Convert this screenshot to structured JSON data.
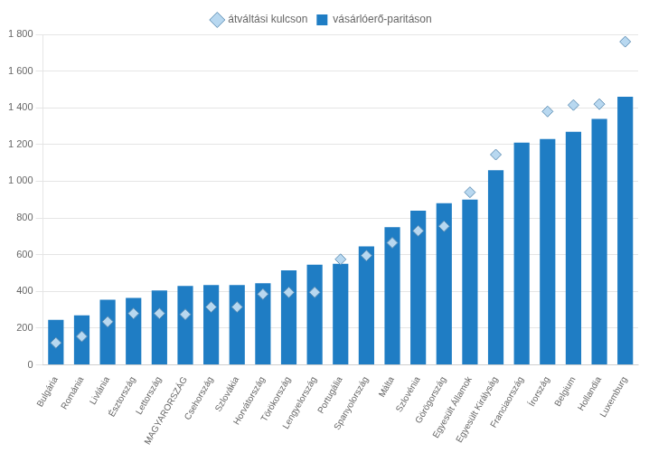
{
  "chart_data": {
    "type": "bar",
    "categories": [
      "Bulgária",
      "Románia",
      "Livlánia",
      "Észtország",
      "Lettország",
      "MAGYARORSZÁG",
      "Csehország",
      "Szlovákia",
      "Horvátország",
      "Törökország",
      "Lengyelország",
      "Portugália",
      "Spanyolország",
      "Málta",
      "Szlovénia",
      "Görögország",
      "Egyesült Államok",
      "Egyesült Királyság",
      "Franciaország",
      "Írország",
      "Belgium",
      "Hollandia",
      "Luxemburg"
    ],
    "series": [
      {
        "name": "vásárlóerő-paritáson",
        "type": "bar",
        "color": "#1F7DC4",
        "values": [
          245,
          270,
          355,
          365,
          405,
          430,
          435,
          435,
          445,
          515,
          545,
          550,
          645,
          750,
          840,
          880,
          900,
          1060,
          1210,
          1230,
          1270,
          1340,
          1460
        ]
      },
      {
        "name": "átváltási kulcson",
        "type": "scatter",
        "marker": "diamond",
        "color": "#B8D8F0",
        "values": [
          120,
          155,
          235,
          280,
          280,
          275,
          315,
          315,
          385,
          395,
          395,
          575,
          595,
          665,
          730,
          755,
          940,
          1145,
          null,
          1380,
          1415,
          1420,
          1760
        ]
      }
    ],
    "ylim": [
      0,
      1800
    ],
    "yticks": [
      0,
      200,
      400,
      600,
      800,
      {
        "value": 1000,
        "label": "1 000"
      },
      {
        "value": 1200,
        "label": "1 200"
      },
      {
        "value": 1400,
        "label": "1 400"
      },
      {
        "value": 1600,
        "label": "1 600"
      },
      {
        "value": 1800,
        "label": "1 800"
      }
    ],
    "grid": true,
    "legend": "top"
  }
}
